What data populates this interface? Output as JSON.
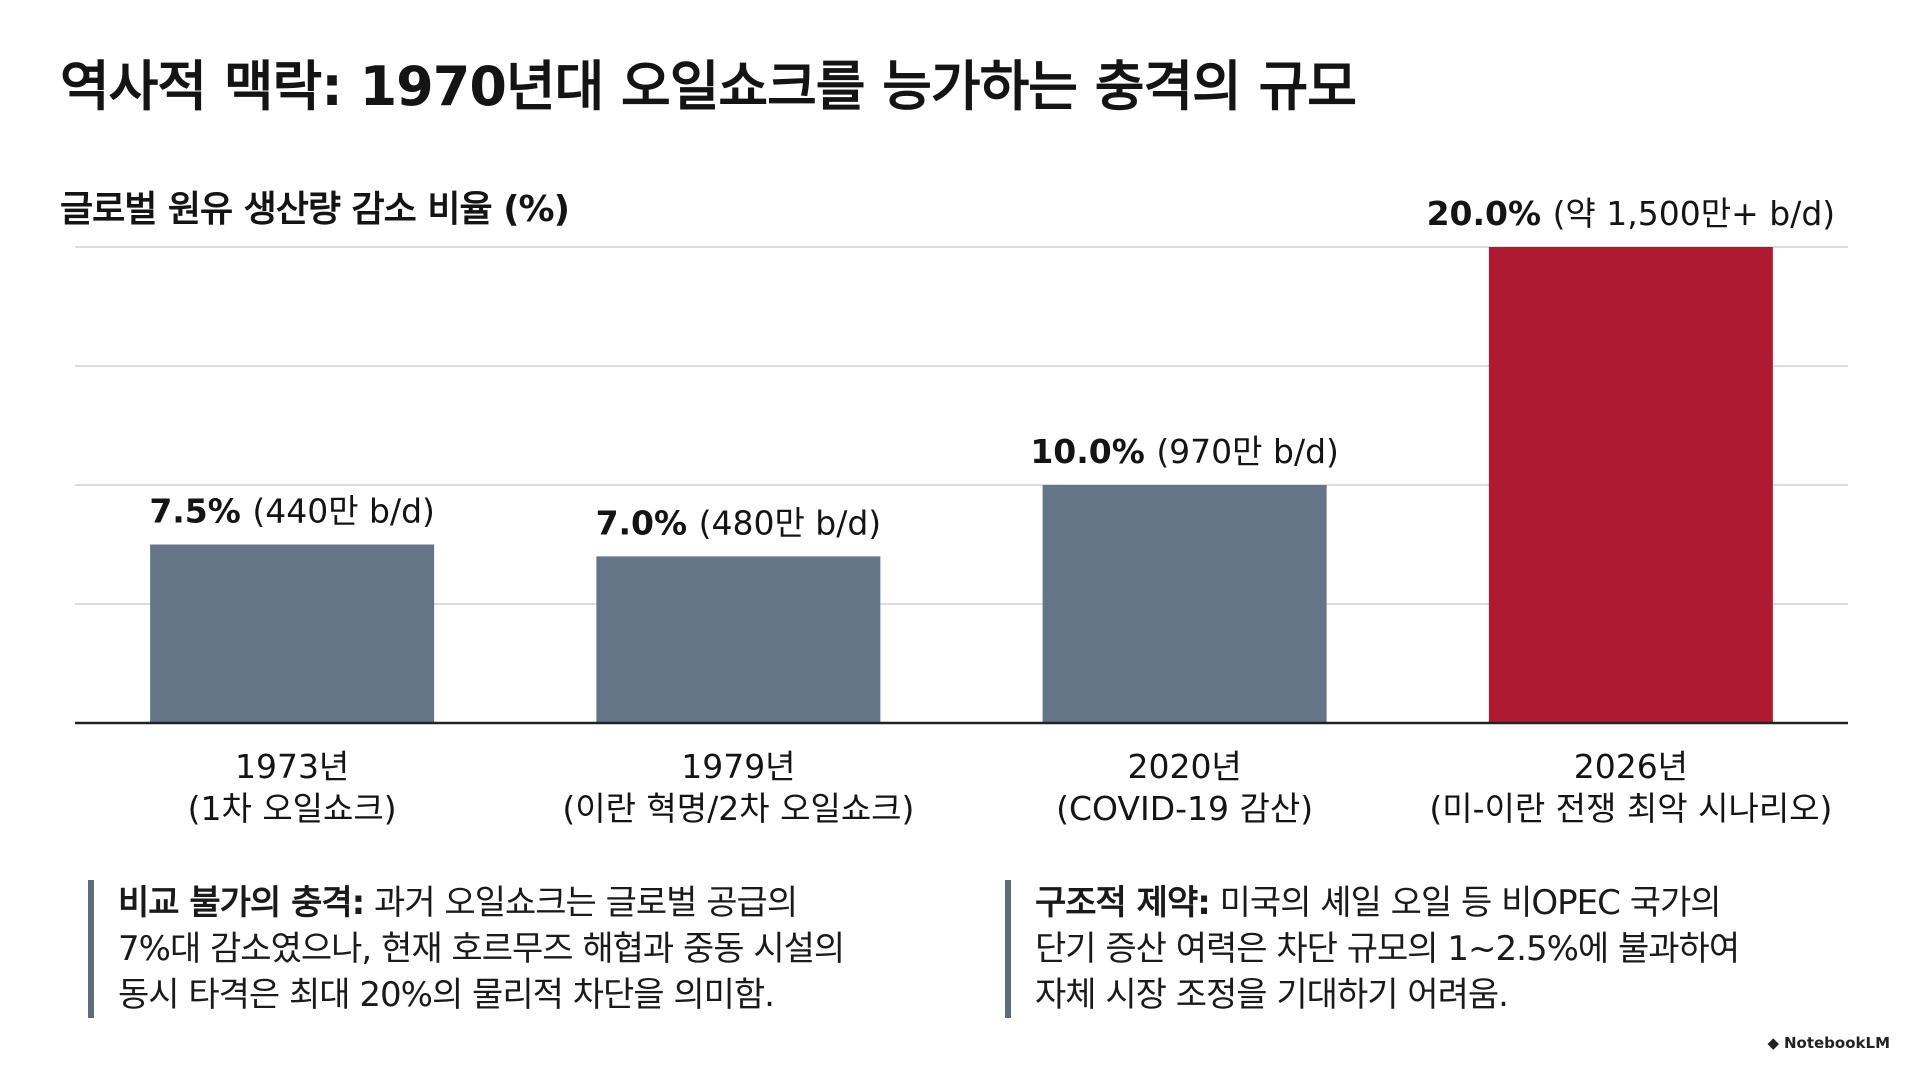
{
  "title": "역사적 맥락: 1970년대 오일쇼크를 능가하는 충격의 규모",
  "colors": {
    "bar_default": "#647588",
    "bar_highlight": "#ae1a32",
    "grid": "#d0d0d0",
    "axis": "#222222",
    "note_border": "#5e6b78"
  },
  "chart_data": {
    "type": "bar",
    "ylabel": "글로벌 원유 생산량 감소 비율 (%)",
    "ylim": [
      0,
      20
    ],
    "grid": true,
    "categories": [
      {
        "year": "1973년",
        "event": "(1차 오일쇼크)"
      },
      {
        "year": "1979년",
        "event": "(이란 혁명/2차 오일쇼크)"
      },
      {
        "year": "2020년",
        "event": "(COVID-19 감산)"
      },
      {
        "year": "2026년",
        "event": "(미-이란 전쟁 최악 시나리오)"
      }
    ],
    "values": [
      7.5,
      7.0,
      10.0,
      20.0
    ],
    "data_labels": [
      {
        "pct": "7.5%",
        "detail": "(440만 b/d)"
      },
      {
        "pct": "7.0%",
        "detail": "(480만 b/d)"
      },
      {
        "pct": "10.0%",
        "detail": "(970만 b/d)"
      },
      {
        "pct": "20.0%",
        "detail": "(약 1,500만+ b/d)"
      }
    ],
    "highlight_index": 3
  },
  "notes": [
    {
      "lead": "비교 불가의 충격:",
      "lines": [
        " 과거 오일쇼크는 글로벌 공급의",
        "7%대 감소였으나, 현재 호르무즈 해협과 중동 시설의",
        "동시 타격은 최대 20%의 물리적 차단을 의미함."
      ]
    },
    {
      "lead": "구조적 제약:",
      "lines": [
        " 미국의 셰일 오일 등 비OPEC 국가의",
        "단기 증산 여력은 차단 규모의 1~2.5%에 불과하여",
        "자체 시장 조정을 기대하기 어려움."
      ]
    }
  ],
  "watermark": "NotebookLM"
}
